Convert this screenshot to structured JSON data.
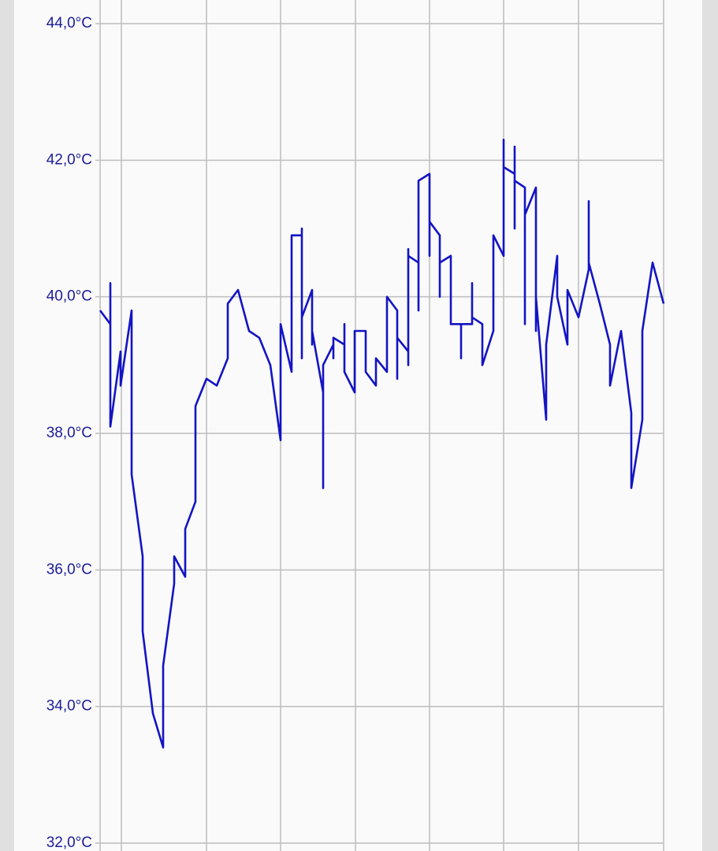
{
  "chart_data": {
    "type": "line",
    "x": [
      0,
      13,
      13,
      13,
      26,
      26,
      40,
      40,
      54,
      54,
      67,
      80,
      80,
      94,
      94,
      108,
      108,
      121,
      121,
      135,
      148,
      162,
      162,
      175,
      189,
      202,
      216,
      229,
      229,
      243,
      243,
      256,
      256,
      256,
      256,
      269,
      269,
      269,
      283,
      283,
      283,
      296,
      296,
      296,
      310,
      310,
      310,
      323,
      323,
      337,
      337,
      350,
      350,
      364,
      364,
      377,
      377,
      377,
      391,
      391,
      391,
      391,
      404,
      404,
      404,
      418,
      418,
      418,
      431,
      431,
      431,
      445,
      445,
      458,
      458,
      458,
      472,
      472,
      472,
      485,
      485,
      499,
      499,
      512,
      512,
      512,
      526,
      526,
      526,
      526,
      539,
      539,
      539,
      553,
      553,
      553,
      566,
      566,
      580,
      580,
      593,
      593,
      607,
      620,
      620,
      620,
      634,
      647,
      647,
      661,
      674,
      674,
      688,
      688,
      701,
      715
    ],
    "series": [
      {
        "color": "#1414c4",
        "values": [
          39.8,
          39.6,
          40.2,
          38.1,
          39.2,
          38.7,
          39.8,
          37.4,
          36.2,
          35.1,
          33.9,
          33.4,
          34.6,
          35.8,
          36.2,
          35.9,
          36.6,
          37.0,
          38.4,
          38.8,
          38.7,
          39.1,
          39.9,
          40.1,
          39.5,
          39.4,
          39.0,
          37.9,
          39.6,
          38.9,
          40.9,
          40.9,
          41.0,
          39.1,
          39.7,
          40.1,
          39.3,
          39.5,
          38.6,
          37.2,
          39.0,
          39.3,
          39.1,
          39.4,
          39.3,
          39.6,
          38.9,
          38.6,
          39.5,
          39.5,
          38.9,
          38.7,
          39.1,
          38.9,
          40.0,
          39.8,
          38.8,
          39.4,
          39.2,
          40.7,
          39.0,
          40.6,
          40.5,
          39.8,
          41.7,
          41.8,
          40.6,
          41.1,
          40.9,
          40.0,
          40.5,
          40.6,
          39.6,
          39.6,
          39.1,
          39.6,
          39.6,
          40.2,
          39.7,
          39.6,
          39.0,
          39.5,
          40.9,
          40.6,
          42.3,
          41.9,
          41.8,
          41.0,
          42.2,
          41.7,
          41.6,
          39.6,
          41.2,
          41.6,
          39.5,
          40.0,
          38.2,
          39.3,
          40.6,
          40.0,
          39.3,
          40.1,
          39.7,
          40.4,
          41.4,
          40.5,
          39.9,
          39.3,
          38.7,
          39.5,
          38.3,
          37.2,
          38.2,
          39.5,
          40.5,
          39.9
        ]
      }
    ],
    "xlim": [
      0,
      715
    ],
    "xticks": [
      27,
      135,
      229,
      324,
      418,
      512,
      607,
      715
    ],
    "ylim": [
      32,
      44
    ],
    "yticks": [
      {
        "value": 32,
        "label": "32,0°C"
      },
      {
        "value": 34,
        "label": "34,0°C"
      },
      {
        "value": 36,
        "label": "36,0°C"
      },
      {
        "value": 38,
        "label": "38,0°C"
      },
      {
        "value": 40,
        "label": "40,0°C"
      },
      {
        "value": 42,
        "label": "42,0°C"
      },
      {
        "value": 44,
        "label": "44,0°C"
      }
    ],
    "grid": true
  }
}
